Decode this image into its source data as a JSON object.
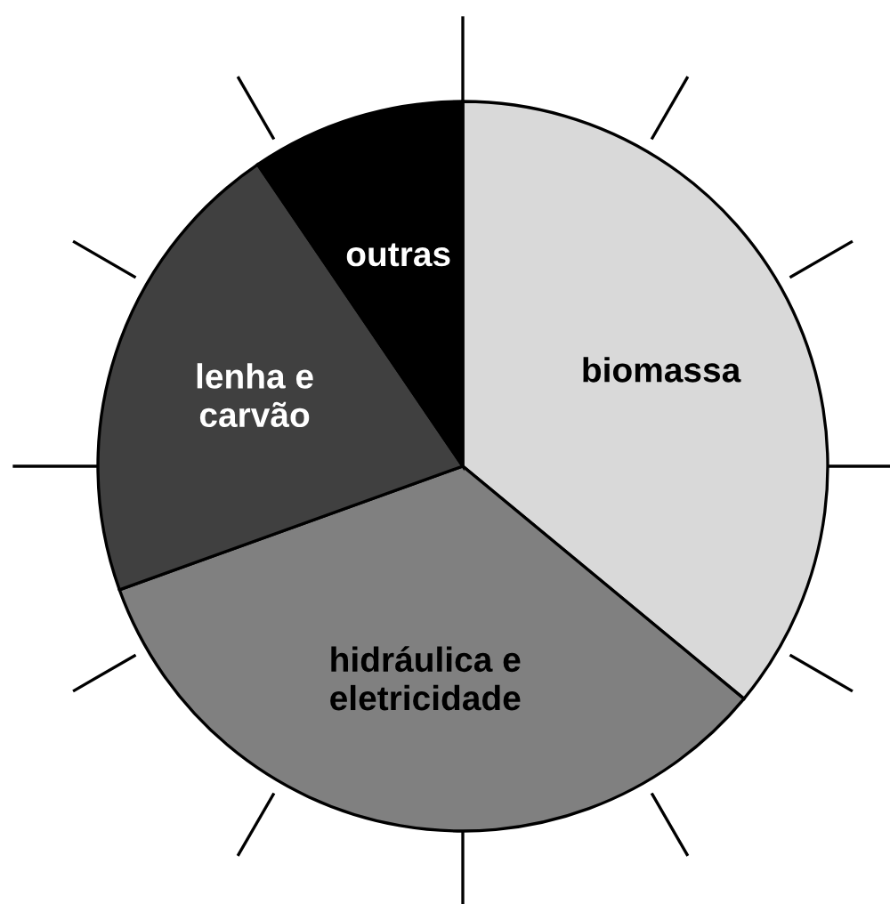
{
  "chart_data": {
    "type": "pie",
    "categories": [
      "biomassa",
      "hidráulica e\neletricidade",
      "lenha e\ncarvão",
      "outras"
    ],
    "values": [
      36,
      33.5,
      21,
      9.5
    ],
    "colors": [
      "#d9d9d9",
      "#808080",
      "#404040",
      "#000000"
    ]
  }
}
